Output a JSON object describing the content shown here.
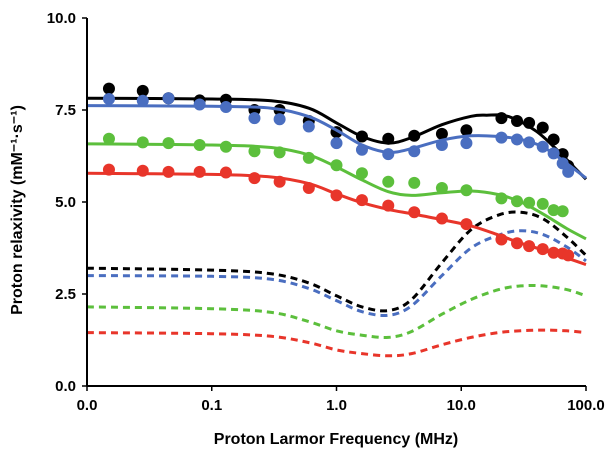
{
  "chart_data": {
    "type": "scatter",
    "title": "",
    "xlabel": "Proton Larmor Frequency (MHz)",
    "ylabel": "Proton relaxivity (mM⁻¹·s⁻¹)",
    "x_scale": "log",
    "xlim": [
      0.01,
      100
    ],
    "ylim": [
      0,
      10
    ],
    "x_ticks": [
      0.01,
      0.1,
      1,
      10,
      100
    ],
    "x_tick_labels": [
      "0.0",
      "0.1",
      "1.0",
      "10.0",
      "100.0"
    ],
    "y_ticks": [
      0,
      2.5,
      5,
      7.5,
      10
    ],
    "y_tick_labels": [
      "0.0",
      "2.5",
      "5.0",
      "7.5",
      "10.0"
    ],
    "grid": false,
    "legend": "none",
    "series": [
      {
        "color": "#000000",
        "points": [
          [
            0.015,
            8.08
          ],
          [
            0.028,
            8.02
          ],
          [
            0.045,
            7.82
          ],
          [
            0.08,
            7.76
          ],
          [
            0.13,
            7.78
          ],
          [
            0.22,
            7.5
          ],
          [
            0.35,
            7.5
          ],
          [
            0.6,
            7.2
          ],
          [
            1.0,
            6.9
          ],
          [
            1.6,
            6.78
          ],
          [
            2.6,
            6.72
          ],
          [
            4.2,
            6.8
          ],
          [
            7.0,
            6.85
          ],
          [
            11,
            6.95
          ],
          [
            21,
            7.28
          ],
          [
            28,
            7.2
          ],
          [
            35,
            7.15
          ],
          [
            45,
            7.02
          ],
          [
            55,
            6.7
          ],
          [
            65,
            6.3
          ],
          [
            72,
            5.98
          ]
        ],
        "fit": [
          [
            0.01,
            7.82
          ],
          [
            0.1,
            7.8
          ],
          [
            0.3,
            7.75
          ],
          [
            0.6,
            7.55
          ],
          [
            1,
            7.15
          ],
          [
            1.6,
            6.78
          ],
          [
            2.6,
            6.6
          ],
          [
            4,
            6.75
          ],
          [
            7,
            7.1
          ],
          [
            12,
            7.33
          ],
          [
            16,
            7.36
          ],
          [
            24,
            7.32
          ],
          [
            40,
            6.92
          ],
          [
            60,
            6.38
          ],
          [
            80,
            5.95
          ],
          [
            100,
            5.62
          ]
        ],
        "dashed": [
          [
            0.01,
            3.2
          ],
          [
            0.1,
            3.15
          ],
          [
            0.3,
            3.05
          ],
          [
            0.6,
            2.8
          ],
          [
            1,
            2.45
          ],
          [
            1.6,
            2.15
          ],
          [
            2.6,
            2.05
          ],
          [
            4,
            2.35
          ],
          [
            7,
            3.35
          ],
          [
            12,
            4.25
          ],
          [
            20,
            4.65
          ],
          [
            30,
            4.72
          ],
          [
            45,
            4.55
          ],
          [
            70,
            4.05
          ],
          [
            100,
            3.55
          ]
        ]
      },
      {
        "color": "#4a6ec0",
        "points": [
          [
            0.015,
            7.8
          ],
          [
            0.028,
            7.75
          ],
          [
            0.045,
            7.82
          ],
          [
            0.08,
            7.65
          ],
          [
            0.13,
            7.58
          ],
          [
            0.22,
            7.28
          ],
          [
            0.35,
            7.25
          ],
          [
            0.6,
            7.05
          ],
          [
            1.0,
            6.6
          ],
          [
            1.6,
            6.42
          ],
          [
            2.6,
            6.3
          ],
          [
            4.2,
            6.38
          ],
          [
            7.0,
            6.55
          ],
          [
            11,
            6.6
          ],
          [
            21,
            6.75
          ],
          [
            28,
            6.7
          ],
          [
            35,
            6.62
          ],
          [
            45,
            6.5
          ],
          [
            55,
            6.32
          ],
          [
            65,
            6.05
          ],
          [
            72,
            5.82
          ]
        ],
        "fit": [
          [
            0.01,
            7.62
          ],
          [
            0.1,
            7.6
          ],
          [
            0.3,
            7.55
          ],
          [
            0.6,
            7.32
          ],
          [
            1,
            6.95
          ],
          [
            1.6,
            6.55
          ],
          [
            2.6,
            6.35
          ],
          [
            4,
            6.45
          ],
          [
            7,
            6.68
          ],
          [
            12,
            6.8
          ],
          [
            20,
            6.78
          ],
          [
            30,
            6.7
          ],
          [
            45,
            6.5
          ],
          [
            70,
            6.05
          ],
          [
            100,
            5.65
          ]
        ],
        "dashed": [
          [
            0.01,
            3.0
          ],
          [
            0.1,
            2.98
          ],
          [
            0.3,
            2.9
          ],
          [
            0.6,
            2.65
          ],
          [
            1,
            2.32
          ],
          [
            1.6,
            2.02
          ],
          [
            2.6,
            1.92
          ],
          [
            4,
            2.18
          ],
          [
            7,
            3.0
          ],
          [
            12,
            3.75
          ],
          [
            20,
            4.1
          ],
          [
            30,
            4.22
          ],
          [
            45,
            4.12
          ],
          [
            70,
            3.78
          ],
          [
            100,
            3.4
          ]
        ]
      },
      {
        "color": "#5cbf3c",
        "points": [
          [
            0.015,
            6.72
          ],
          [
            0.028,
            6.62
          ],
          [
            0.045,
            6.6
          ],
          [
            0.08,
            6.55
          ],
          [
            0.13,
            6.5
          ],
          [
            0.22,
            6.38
          ],
          [
            0.35,
            6.35
          ],
          [
            0.6,
            6.2
          ],
          [
            1.0,
            6.0
          ],
          [
            1.6,
            5.78
          ],
          [
            2.6,
            5.55
          ],
          [
            4.2,
            5.52
          ],
          [
            7.0,
            5.38
          ],
          [
            11,
            5.32
          ],
          [
            21,
            5.1
          ],
          [
            28,
            5.02
          ],
          [
            35,
            4.98
          ],
          [
            45,
            4.95
          ],
          [
            55,
            4.78
          ],
          [
            65,
            4.75
          ]
        ],
        "fit": [
          [
            0.01,
            6.58
          ],
          [
            0.1,
            6.55
          ],
          [
            0.3,
            6.48
          ],
          [
            0.6,
            6.28
          ],
          [
            1,
            5.95
          ],
          [
            1.6,
            5.6
          ],
          [
            2.6,
            5.28
          ],
          [
            4,
            5.18
          ],
          [
            7,
            5.25
          ],
          [
            12,
            5.3
          ],
          [
            20,
            5.2
          ],
          [
            30,
            5.0
          ],
          [
            45,
            4.68
          ],
          [
            70,
            4.28
          ],
          [
            100,
            4.0
          ]
        ],
        "dashed": [
          [
            0.01,
            2.15
          ],
          [
            0.1,
            2.1
          ],
          [
            0.3,
            2.0
          ],
          [
            0.6,
            1.75
          ],
          [
            1,
            1.5
          ],
          [
            1.6,
            1.38
          ],
          [
            2.6,
            1.32
          ],
          [
            4,
            1.48
          ],
          [
            7,
            1.95
          ],
          [
            12,
            2.35
          ],
          [
            20,
            2.62
          ],
          [
            30,
            2.72
          ],
          [
            45,
            2.72
          ],
          [
            70,
            2.62
          ],
          [
            100,
            2.45
          ]
        ]
      },
      {
        "color": "#e8352a",
        "points": [
          [
            0.015,
            5.88
          ],
          [
            0.028,
            5.85
          ],
          [
            0.045,
            5.82
          ],
          [
            0.08,
            5.82
          ],
          [
            0.13,
            5.8
          ],
          [
            0.22,
            5.65
          ],
          [
            0.35,
            5.55
          ],
          [
            0.6,
            5.38
          ],
          [
            1.0,
            5.18
          ],
          [
            1.6,
            5.05
          ],
          [
            2.6,
            4.9
          ],
          [
            4.2,
            4.72
          ],
          [
            7.0,
            4.55
          ],
          [
            11,
            4.4
          ],
          [
            21,
            3.98
          ],
          [
            28,
            3.88
          ],
          [
            35,
            3.8
          ],
          [
            45,
            3.72
          ],
          [
            55,
            3.62
          ],
          [
            65,
            3.6
          ],
          [
            72,
            3.55
          ]
        ],
        "fit": [
          [
            0.01,
            5.78
          ],
          [
            0.1,
            5.75
          ],
          [
            0.3,
            5.68
          ],
          [
            0.6,
            5.5
          ],
          [
            1,
            5.22
          ],
          [
            1.6,
            4.98
          ],
          [
            2.6,
            4.8
          ],
          [
            4,
            4.68
          ],
          [
            7,
            4.52
          ],
          [
            12,
            4.35
          ],
          [
            20,
            4.1
          ],
          [
            30,
            3.88
          ],
          [
            45,
            3.7
          ],
          [
            70,
            3.48
          ],
          [
            100,
            3.3
          ]
        ],
        "dashed": [
          [
            0.01,
            1.45
          ],
          [
            0.1,
            1.42
          ],
          [
            0.3,
            1.35
          ],
          [
            0.6,
            1.18
          ],
          [
            1,
            0.98
          ],
          [
            1.6,
            0.88
          ],
          [
            2.6,
            0.82
          ],
          [
            4,
            0.88
          ],
          [
            7,
            1.12
          ],
          [
            12,
            1.32
          ],
          [
            20,
            1.45
          ],
          [
            30,
            1.5
          ],
          [
            45,
            1.52
          ],
          [
            70,
            1.5
          ],
          [
            100,
            1.45
          ]
        ]
      }
    ]
  }
}
